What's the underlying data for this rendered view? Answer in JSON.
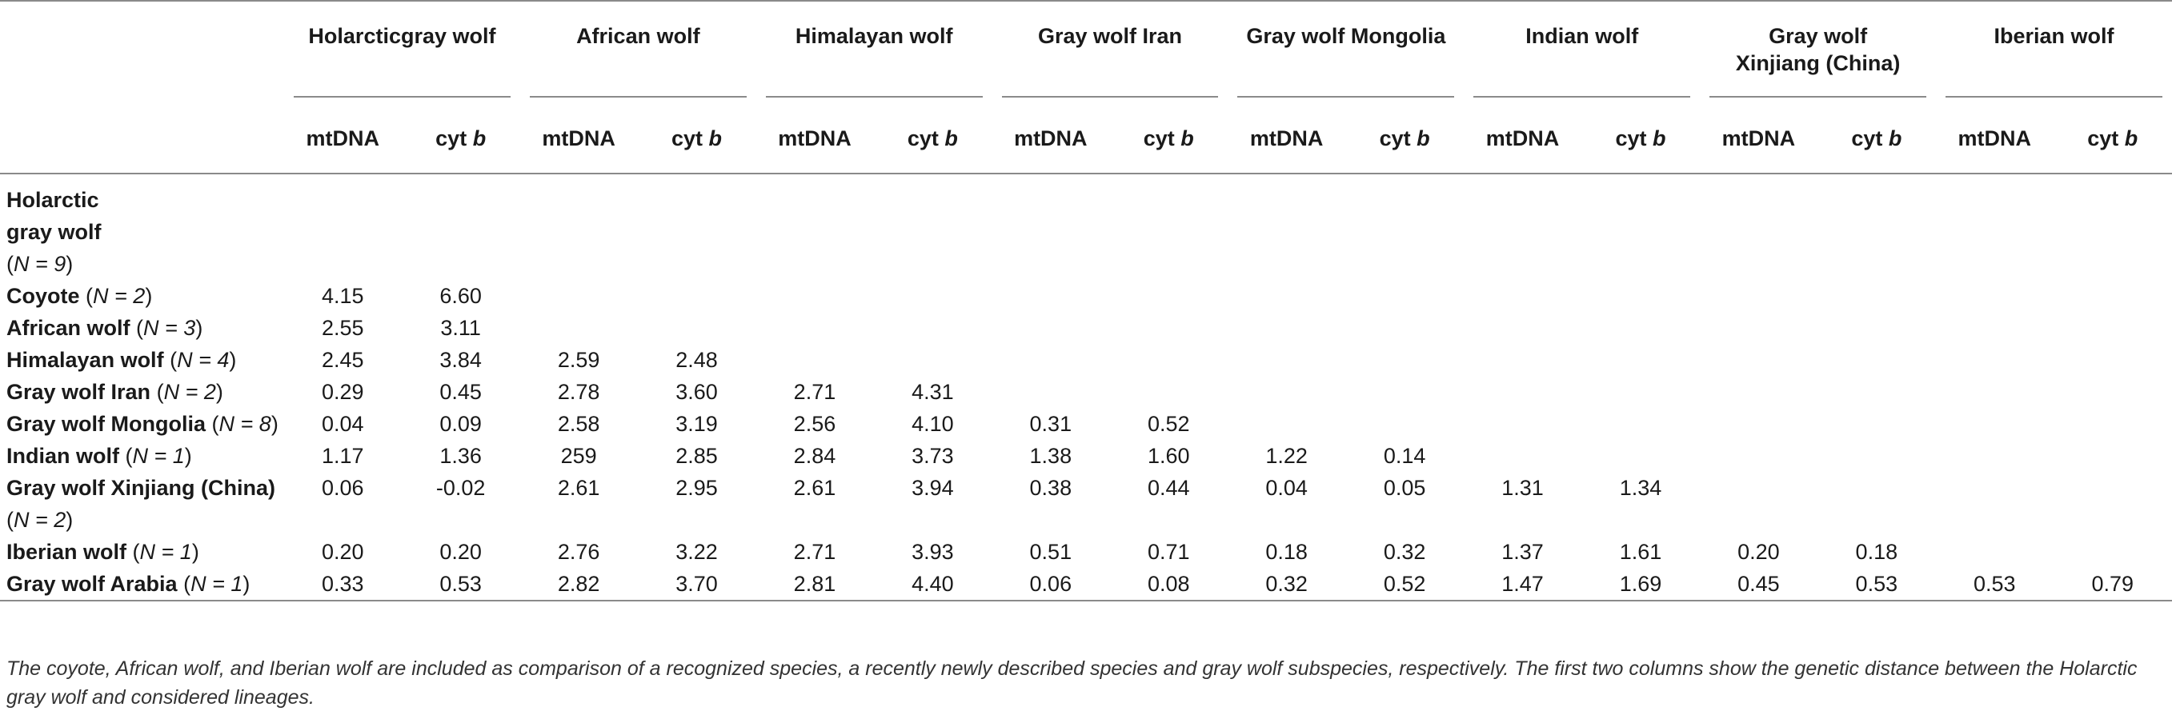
{
  "columns": {
    "groups": [
      "Holarcticgray wolf",
      "African wolf",
      "Himalayan wolf",
      "Gray wolf Iran",
      "Gray wolf Mongolia",
      "Indian wolf",
      "Gray wolf Xinjiang (China)",
      "Iberian wolf"
    ],
    "sub_mtdna": "mtDNA",
    "sub_cytb_prefix": "cyt ",
    "sub_cytb_italic": "b"
  },
  "rows": [
    {
      "name": "Holarctic gray wolf",
      "n": "N = 9",
      "values": [
        "",
        "",
        "",
        "",
        "",
        "",
        "",
        "",
        "",
        "",
        "",
        "",
        "",
        "",
        "",
        ""
      ]
    },
    {
      "name": "Coyote",
      "n": "N = 2",
      "values": [
        "4.15",
        "6.60",
        "",
        "",
        "",
        "",
        "",
        "",
        "",
        "",
        "",
        "",
        "",
        "",
        "",
        ""
      ]
    },
    {
      "name": "African wolf",
      "n": "N = 3",
      "values": [
        "2.55",
        "3.11",
        "",
        "",
        "",
        "",
        "",
        "",
        "",
        "",
        "",
        "",
        "",
        "",
        "",
        ""
      ]
    },
    {
      "name": "Himalayan wolf",
      "n": "N = 4",
      "values": [
        "2.45",
        "3.84",
        "2.59",
        "2.48",
        "",
        "",
        "",
        "",
        "",
        "",
        "",
        "",
        "",
        "",
        "",
        ""
      ]
    },
    {
      "name": "Gray wolf Iran",
      "n": "N = 2",
      "values": [
        "0.29",
        "0.45",
        "2.78",
        "3.60",
        "2.71",
        "4.31",
        "",
        "",
        "",
        "",
        "",
        "",
        "",
        "",
        "",
        ""
      ]
    },
    {
      "name": "Gray wolf Mongolia",
      "n": "N = 8",
      "values": [
        "0.04",
        "0.09",
        "2.58",
        "3.19",
        "2.56",
        "4.10",
        "0.31",
        "0.52",
        "",
        "",
        "",
        "",
        "",
        "",
        "",
        ""
      ]
    },
    {
      "name": "Indian wolf",
      "n": "N = 1",
      "values": [
        "1.17",
        "1.36",
        "259",
        "2.85",
        "2.84",
        "3.73",
        "1.38",
        "1.60",
        "1.22",
        "0.14",
        "",
        "",
        "",
        "",
        "",
        ""
      ]
    },
    {
      "name": "Gray wolf Xinjiang (China)",
      "n": "N = 2",
      "values": [
        "0.06",
        "-0.02",
        "2.61",
        "2.95",
        "2.61",
        "3.94",
        "0.38",
        "0.44",
        "0.04",
        "0.05",
        "1.31",
        "1.34",
        "",
        "",
        "",
        ""
      ]
    },
    {
      "name": "Iberian wolf",
      "n": "N = 1",
      "values": [
        "0.20",
        "0.20",
        "2.76",
        "3.22",
        "2.71",
        "3.93",
        "0.51",
        "0.71",
        "0.18",
        "0.32",
        "1.37",
        "1.61",
        "0.20",
        "0.18",
        "",
        ""
      ]
    },
    {
      "name": "Gray wolf Arabia",
      "n": "N = 1",
      "values": [
        "0.33",
        "0.53",
        "2.82",
        "3.70",
        "2.81",
        "4.40",
        "0.06",
        "0.08",
        "0.32",
        "0.52",
        "1.47",
        "1.69",
        "0.45",
        "0.53",
        "0.53",
        "0.79"
      ]
    }
  ],
  "footnote": "The coyote, African wolf, and Iberian wolf are included as comparison of a recognized species, a recently newly described species and gray wolf subspecies, respectively. The first two columns show the genetic distance between the Holarctic gray wolf and considered lineages."
}
